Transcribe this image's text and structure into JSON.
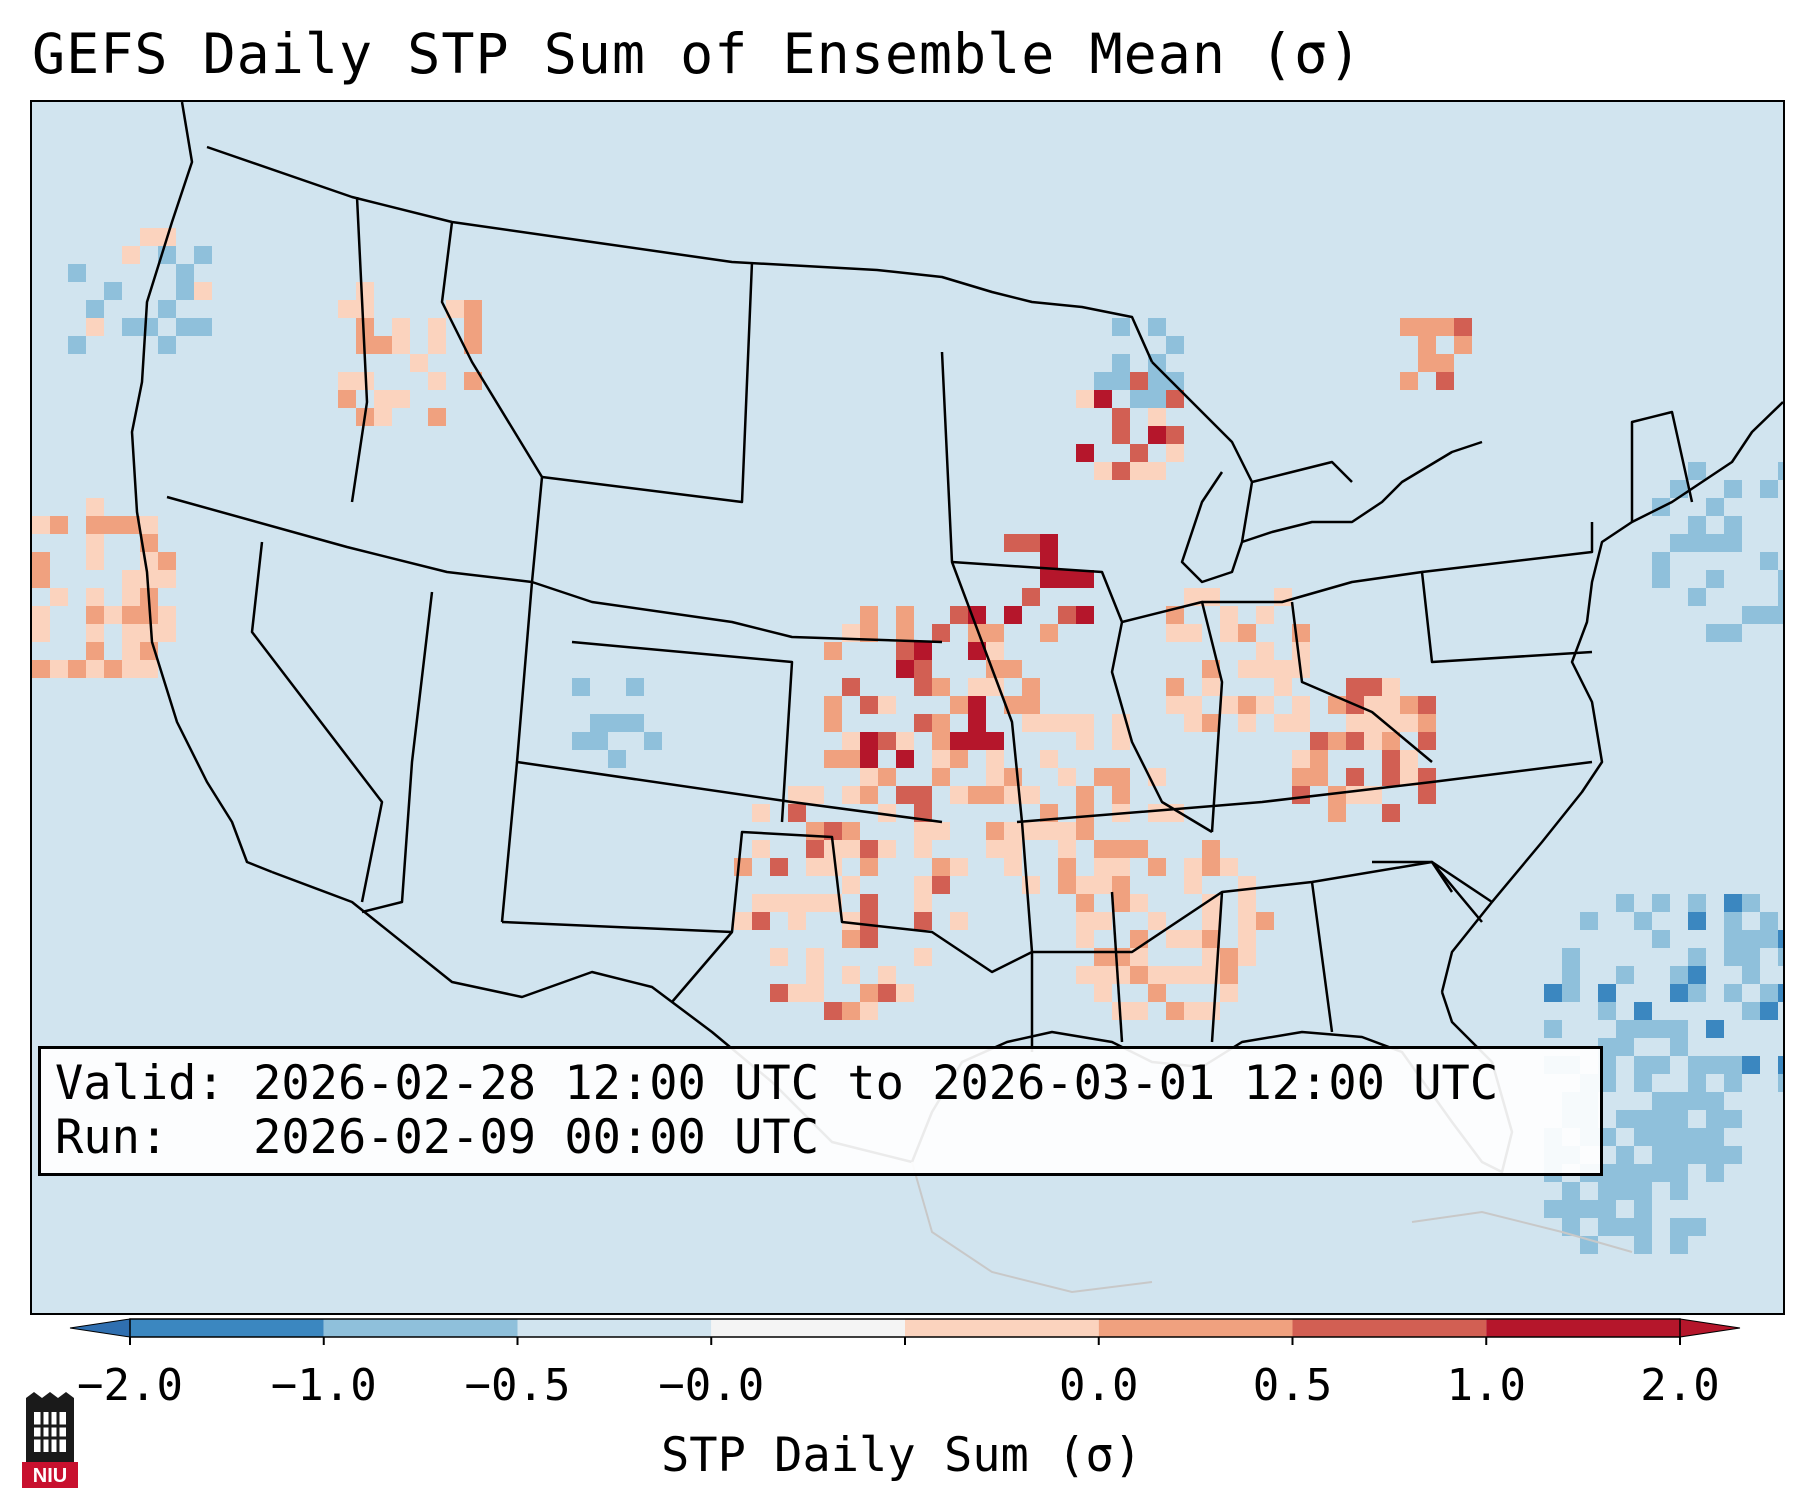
{
  "title": "GEFS Daily STP Sum of Ensemble Mean (σ)",
  "info": {
    "valid_label": "Valid:",
    "valid_value": "2026-02-28 12:00 UTC to 2026-03-01 12:00 UTC",
    "run_label": "Run:",
    "run_value": "2026-02-09 00:00 UTC"
  },
  "colorbar": {
    "label": "STP Daily Sum (σ)",
    "ticks": [
      "−2.0",
      "−1.0",
      "−0.5",
      "−0.0",
      "0.0",
      "0.5",
      "1.0",
      "2.0"
    ],
    "colors": [
      "#3b87c0",
      "#8fc0db",
      "#d1e4ef",
      "#f4f4f4",
      "#fbd3be",
      "#f0a17f",
      "#d25f53",
      "#b5162b"
    ],
    "extend_low": "#2f6fb0",
    "extend_high": "#b5162b"
  },
  "map": {
    "background": "#d1e4ef",
    "anomaly_areas": [
      {
        "region": "Iowa / Illinois",
        "category": "1.0 to 2.0"
      },
      {
        "region": "Eastern Kansas / Oklahoma",
        "category": "0.5 to 2.0"
      },
      {
        "region": "Texas / Arkansas / Mississippi Valley",
        "category": "0.0 to 1.0"
      },
      {
        "region": "Wisconsin",
        "category": "1.0 to 2.0"
      },
      {
        "region": "Western Atlantic",
        "category": "-1.0 to -0.5"
      }
    ]
  },
  "logo": {
    "text": "NIU",
    "color": "#c8102e"
  }
}
